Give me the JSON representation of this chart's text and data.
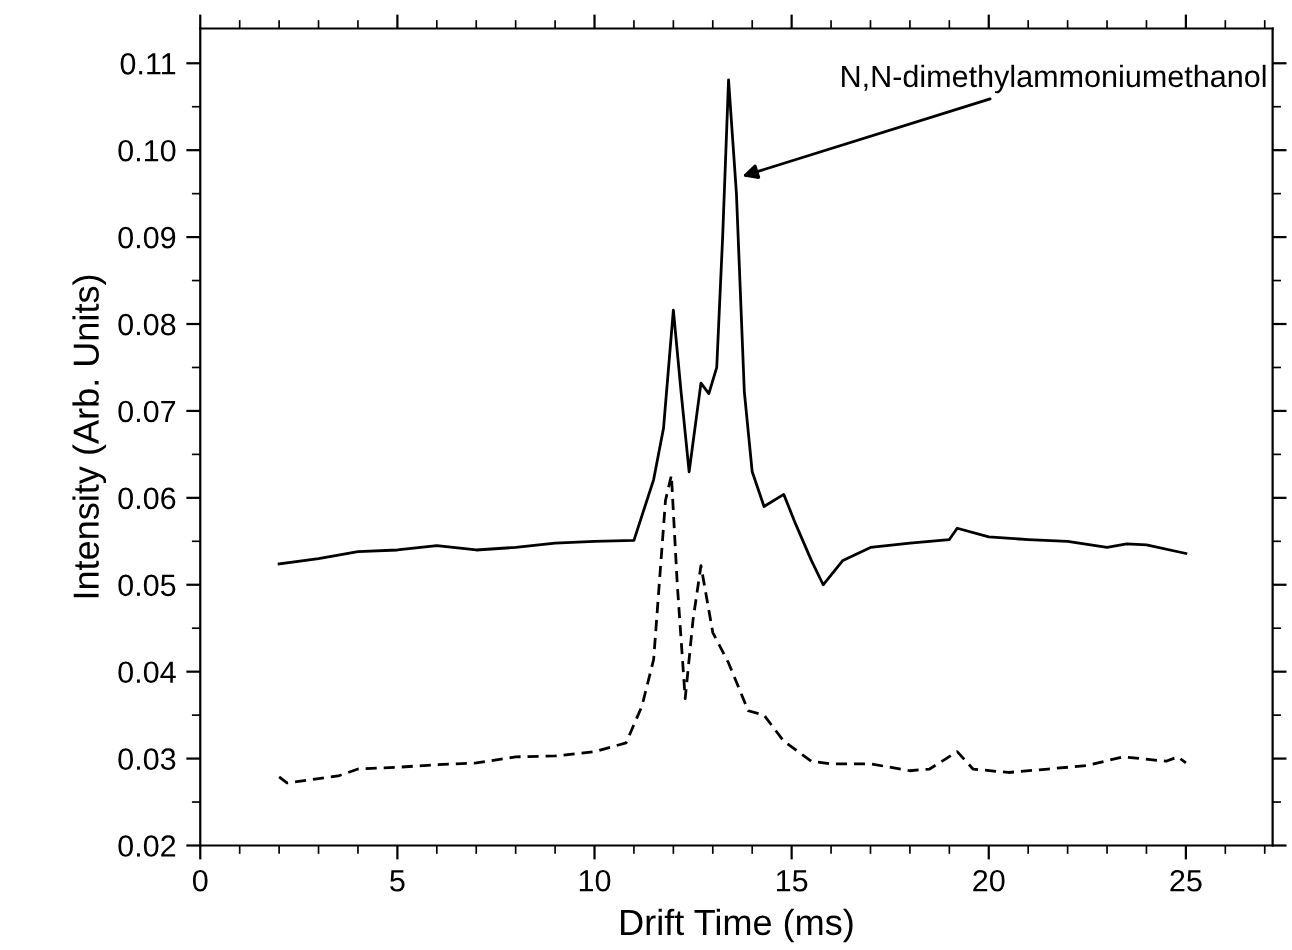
{
  "chart_data": {
    "type": "line",
    "xlabel": "Drift Time (ms)",
    "ylabel": "Intensity (Arb. Units)",
    "xlim": [
      0,
      27.2
    ],
    "ylim": [
      0.02,
      0.114
    ],
    "xticks": [
      0,
      5,
      10,
      15,
      20,
      25
    ],
    "yticks": [
      {
        "value": 0.02,
        "label": "0.02"
      },
      {
        "value": 0.03,
        "label": "0.03"
      },
      {
        "value": 0.04,
        "label": "0.04"
      },
      {
        "value": 0.05,
        "label": "0.05"
      },
      {
        "value": 0.06,
        "label": "0.06"
      },
      {
        "value": 0.07,
        "label": "0.07"
      },
      {
        "value": 0.08,
        "label": "0.08"
      },
      {
        "value": 0.09,
        "label": "0.09"
      },
      {
        "value": 0.1,
        "label": "0.10"
      },
      {
        "value": 0.11,
        "label": "0.11"
      }
    ],
    "grid": false,
    "legend": false,
    "annotations": [
      {
        "text": "N,N-dimethylammoniumethanol",
        "x": 13.75,
        "y": 0.097
      }
    ],
    "series": [
      {
        "color": "#000000",
        "line_style": "solid",
        "x": [
          2,
          3,
          4,
          5,
          6,
          7,
          8,
          9,
          10,
          11,
          11.5,
          11.75,
          12.0,
          12.2,
          12.4,
          12.7,
          12.9,
          13.1,
          13.25,
          13.4,
          13.6,
          13.8,
          14.0,
          14.3,
          14.8,
          15.1,
          15.5,
          15.8,
          16.3,
          17,
          18,
          19,
          19.2,
          20,
          21,
          22,
          23,
          23.5,
          24,
          25
        ],
        "values": [
          0.0524,
          0.053,
          0.0538,
          0.054,
          0.0545,
          0.054,
          0.0543,
          0.0548,
          0.055,
          0.0551,
          0.0621,
          0.068,
          0.0816,
          0.072,
          0.063,
          0.0732,
          0.072,
          0.075,
          0.09,
          0.1081,
          0.095,
          0.0722,
          0.063,
          0.059,
          0.0604,
          0.057,
          0.0528,
          0.05,
          0.0528,
          0.0543,
          0.0548,
          0.0552,
          0.0565,
          0.0555,
          0.0552,
          0.055,
          0.0543,
          0.0547,
          0.0546,
          0.0536
        ]
      },
      {
        "color": "#000000",
        "line_style": "dashed",
        "x": [
          2,
          2.2,
          3,
          3.5,
          4,
          5,
          6,
          7,
          8,
          9,
          10,
          10.8,
          11.2,
          11.5,
          11.8,
          11.95,
          12.1,
          12.3,
          12.5,
          12.7,
          13.0,
          13.4,
          13.9,
          14.3,
          14.8,
          15.5,
          16,
          17,
          18,
          18.5,
          19.2,
          19.6,
          20.5,
          21.5,
          22.5,
          23.4,
          24.5,
          24.8,
          25
        ],
        "values": [
          0.0279,
          0.0272,
          0.0277,
          0.028,
          0.0288,
          0.029,
          0.0293,
          0.0295,
          0.0302,
          0.0303,
          0.0308,
          0.0318,
          0.036,
          0.0414,
          0.0597,
          0.0626,
          0.05,
          0.0369,
          0.046,
          0.0522,
          0.0445,
          0.041,
          0.0355,
          0.035,
          0.032,
          0.0297,
          0.0294,
          0.0294,
          0.0286,
          0.0288,
          0.0308,
          0.0288,
          0.0284,
          0.0288,
          0.0292,
          0.0302,
          0.0297,
          0.0302,
          0.0295
        ]
      }
    ]
  }
}
